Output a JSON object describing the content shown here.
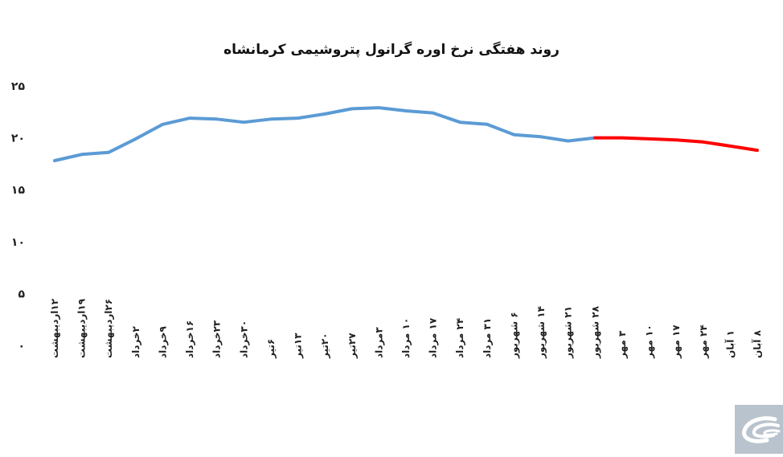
{
  "chart_data": {
    "type": "line",
    "title": "روند هفتگی نرخ اوره گرانول پتروشیمی کرمانشاه",
    "xlabel": "",
    "ylabel": "",
    "ylim": [
      0,
      25
    ],
    "yticks": [
      "۰",
      "۵",
      "۱۰",
      "۱۵",
      "۲۰",
      "۲۵"
    ],
    "ytick_values": [
      0,
      5,
      10,
      15,
      20,
      25
    ],
    "grid": false,
    "legend": "none",
    "categories": [
      "۱۲اردیبهشت",
      "۱۹اردیبهشت",
      "۲۶اردیبهشت",
      "۲خرداد",
      "۹خرداد",
      "۱۶خرداد",
      "۲۳خرداد",
      "۳۰خرداد",
      "۶تیر",
      "۱۳تیر",
      "۲۰تیر",
      "۲۷تیر",
      "۳مرداد",
      "۱۰ مرداد",
      "۱۷ مرداد",
      "۲۴ مرداد",
      "۳۱ مرداد",
      "۶ شهریور",
      "۱۴ شهریور",
      "۲۱ شهریور",
      "۲۸ شهریور",
      "۳ مهر",
      "۱۰ مهر",
      "۱۷ مهر",
      "۲۴ مهر",
      "۱ آبان",
      "۸ آبان"
    ],
    "series": [
      {
        "color": "#5b9bd5",
        "values": [
          17.8,
          18.4,
          18.6,
          19.9,
          21.3,
          21.9,
          21.8,
          21.5,
          21.8,
          21.9,
          22.3,
          22.8,
          22.9,
          22.6,
          22.4,
          21.5,
          21.3,
          20.3,
          20.1,
          19.7,
          20.0,
          null,
          null,
          null,
          null,
          null,
          null
        ]
      },
      {
        "color": "#ff0000",
        "values": [
          null,
          null,
          null,
          null,
          null,
          null,
          null,
          null,
          null,
          null,
          null,
          null,
          null,
          null,
          null,
          null,
          null,
          null,
          null,
          null,
          20.0,
          20.0,
          19.9,
          19.8,
          19.6,
          19.2,
          18.8
        ]
      }
    ]
  },
  "watermark_logo": "publisher-logo-icon"
}
